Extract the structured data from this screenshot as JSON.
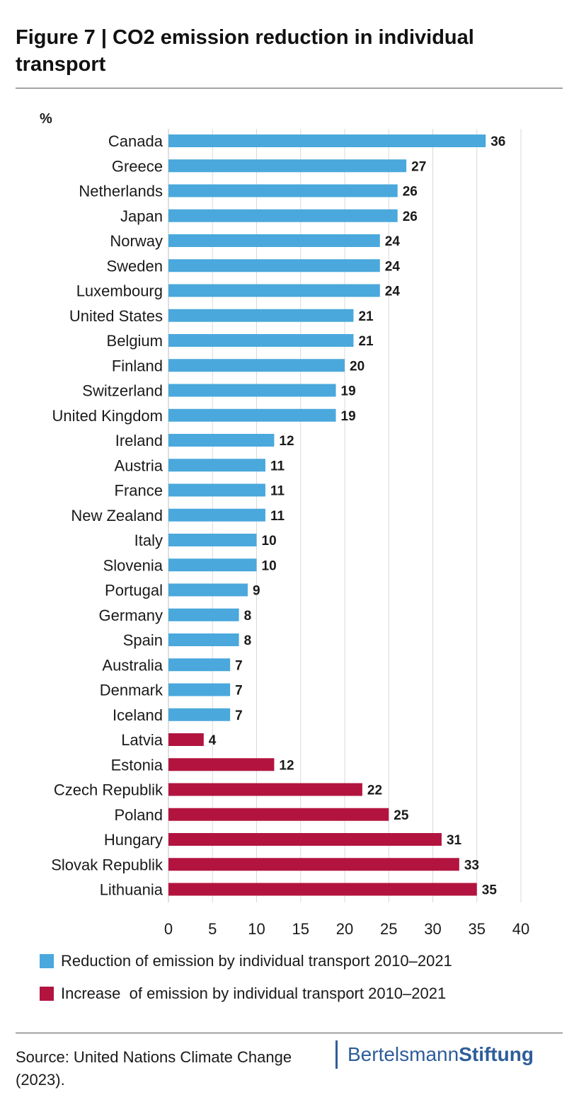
{
  "header": {
    "title": "Figure 7  |  CO2 emission reduction in individual transport"
  },
  "colors": {
    "reduction": "#4aa8dc",
    "increase": "#b3143f",
    "grid": "#d9d9d9",
    "text": "#1a1a1a"
  },
  "chart_data": {
    "type": "bar",
    "orientation": "horizontal",
    "unit_label": "%",
    "xlim": [
      0,
      40
    ],
    "xticks": [
      0,
      5,
      10,
      15,
      20,
      25,
      30,
      35,
      40
    ],
    "grid": "vertical",
    "legend_placement": "bottom",
    "categories": [
      "Canada",
      "Greece",
      "Netherlands",
      "Japan",
      "Norway",
      "Sweden",
      "Luxembourg",
      "United States",
      "Belgium",
      "Finland",
      "Switzerland",
      "United Kingdom",
      "Ireland",
      "Austria",
      "France",
      "New Zealand",
      "Italy",
      "Slovenia",
      "Portugal",
      "Germany",
      "Spain",
      "Australia",
      "Denmark",
      "Iceland",
      "Latvia",
      "Estonia",
      "Czech Republik",
      "Poland",
      "Hungary",
      "Slovak Republik",
      "Lithuania"
    ],
    "values": [
      36,
      27,
      26,
      26,
      24,
      24,
      24,
      21,
      21,
      20,
      19,
      19,
      12,
      11,
      11,
      11,
      10,
      10,
      9,
      8,
      8,
      7,
      7,
      7,
      4,
      12,
      22,
      25,
      31,
      33,
      35
    ],
    "series_index": [
      0,
      0,
      0,
      0,
      0,
      0,
      0,
      0,
      0,
      0,
      0,
      0,
      0,
      0,
      0,
      0,
      0,
      0,
      0,
      0,
      0,
      0,
      0,
      0,
      1,
      1,
      1,
      1,
      1,
      1,
      1
    ],
    "series": [
      {
        "name": "Reduction of emission by individual transport 2010–2021",
        "color": "#4aa8dc"
      },
      {
        "name": "Increase  of emission by individual transport 2010–2021",
        "color": "#b3143f"
      }
    ]
  },
  "footer": {
    "source": "Source: United Nations Climate Change (2023).",
    "logo_part1": "Bertelsmann",
    "logo_part2": "Stiftung"
  }
}
